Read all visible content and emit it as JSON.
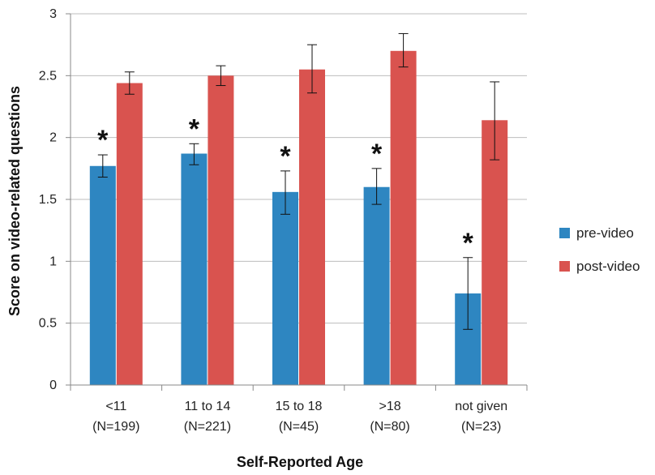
{
  "chart_data": {
    "type": "bar",
    "title": "",
    "xlabel": "Self-Reported Age",
    "ylabel": "Score on video-related questions",
    "ylim": [
      0,
      3
    ],
    "yticks": [
      0,
      0.5,
      1,
      1.5,
      2,
      2.5,
      3
    ],
    "ytick_labels": [
      "0",
      "0.5",
      "1",
      "1.5",
      "2",
      "2.5",
      "3"
    ],
    "grid": "horizontal",
    "legend_position": "right",
    "categories": [
      {
        "line1": "<11",
        "line2": "(N=199)"
      },
      {
        "line1": "11 to 14",
        "line2": "(N=221)"
      },
      {
        "line1": "15 to 18",
        "line2": "(N=45)"
      },
      {
        "line1": ">18",
        "line2": "(N=80)"
      },
      {
        "line1": "not given",
        "line2": "(N=23)"
      }
    ],
    "series": [
      {
        "name": "pre-video",
        "color": "#2E86C1",
        "values": [
          1.77,
          1.87,
          1.56,
          1.6,
          0.74
        ],
        "error_low": [
          1.68,
          1.78,
          1.38,
          1.46,
          0.45
        ],
        "error_high": [
          1.86,
          1.95,
          1.73,
          1.75,
          1.03
        ]
      },
      {
        "name": "post-video",
        "color": "#D9534F",
        "values": [
          2.44,
          2.5,
          2.55,
          2.7,
          2.14
        ],
        "error_low": [
          2.35,
          2.42,
          2.36,
          2.57,
          1.82
        ],
        "error_high": [
          2.53,
          2.58,
          2.75,
          2.84,
          2.45
        ]
      }
    ],
    "annotations": [
      {
        "category_index": 0,
        "series_index": 0,
        "text": "*"
      },
      {
        "category_index": 1,
        "series_index": 0,
        "text": "*"
      },
      {
        "category_index": 2,
        "series_index": 0,
        "text": "*"
      },
      {
        "category_index": 3,
        "series_index": 0,
        "text": "*"
      },
      {
        "category_index": 4,
        "series_index": 0,
        "text": "*"
      }
    ]
  }
}
